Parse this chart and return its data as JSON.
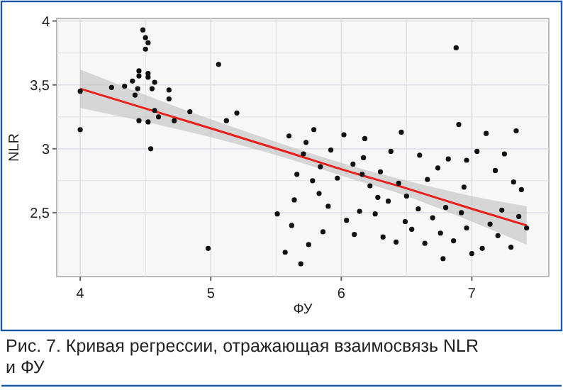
{
  "chart_data": {
    "type": "scatter",
    "xlabel": "ФУ",
    "ylabel": "NLR",
    "annotations": [
      "Рис. 7. Кривая регрессии, отражающая взаимосвязь NLR и ФУ"
    ],
    "xlim": [
      3.82,
      7.59
    ],
    "ylim": [
      2.0,
      4.02
    ],
    "xticks": [
      4,
      5,
      6,
      7
    ],
    "yticks": [
      {
        "value": 2.5,
        "label": "2,5"
      },
      3,
      {
        "value": 3.5,
        "label": "3,5"
      },
      4
    ],
    "grid": true,
    "series": [
      {
        "marker": "circle",
        "color": "#111111",
        "x": [
          4.0,
          4.0,
          4.24,
          4.34,
          4.4,
          4.42,
          4.44,
          4.45,
          4.45,
          4.45,
          4.48,
          4.5,
          4.5,
          4.52,
          4.52,
          4.52,
          4.52,
          4.54,
          4.55,
          4.57,
          4.57,
          4.6,
          4.68,
          4.68,
          4.72,
          4.84,
          4.98,
          5.06,
          5.12,
          5.2,
          5.51,
          5.57,
          5.6,
          5.62,
          5.64,
          5.66,
          5.69,
          5.71,
          5.73,
          5.75,
          5.78,
          5.79,
          5.83,
          5.84,
          5.86,
          5.9,
          5.92,
          5.97,
          6.02,
          6.04,
          6.09,
          6.1,
          6.14,
          6.16,
          6.17,
          6.18,
          6.22,
          6.26,
          6.28,
          6.3,
          6.32,
          6.36,
          6.38,
          6.42,
          6.44,
          6.46,
          6.49,
          6.5,
          6.54,
          6.59,
          6.6,
          6.64,
          6.66,
          6.7,
          6.74,
          6.76,
          6.78,
          6.8,
          6.82,
          6.86,
          6.88,
          6.9,
          6.92,
          6.94,
          6.96,
          6.96,
          7.0,
          7.04,
          7.08,
          7.11,
          7.14,
          7.18,
          7.2,
          7.23,
          7.25,
          7.3,
          7.32,
          7.34,
          7.36,
          7.38,
          7.42
        ],
        "values": [
          3.45,
          3.15,
          3.48,
          3.49,
          3.53,
          3.42,
          3.47,
          3.61,
          3.57,
          3.22,
          3.93,
          3.87,
          3.78,
          3.83,
          3.59,
          3.56,
          3.21,
          3.0,
          3.47,
          3.52,
          3.3,
          3.25,
          3.46,
          3.39,
          3.22,
          3.29,
          2.22,
          3.66,
          3.22,
          3.28,
          2.49,
          2.19,
          3.1,
          2.4,
          2.6,
          2.8,
          2.1,
          2.96,
          3.05,
          2.25,
          2.75,
          3.15,
          2.65,
          2.86,
          2.35,
          2.55,
          2.99,
          2.77,
          3.11,
          2.44,
          2.88,
          2.33,
          2.51,
          2.8,
          2.93,
          3.08,
          2.71,
          2.49,
          2.62,
          2.82,
          2.31,
          2.59,
          2.98,
          2.27,
          2.73,
          3.13,
          2.43,
          2.63,
          2.37,
          2.53,
          2.95,
          2.26,
          2.76,
          2.46,
          2.85,
          2.34,
          2.14,
          2.54,
          2.92,
          2.28,
          3.79,
          3.19,
          2.5,
          2.7,
          2.91,
          2.38,
          2.18,
          2.98,
          2.22,
          3.12,
          2.41,
          2.83,
          2.32,
          2.52,
          2.96,
          2.23,
          2.74,
          3.14,
          2.47,
          2.68,
          2.38
        ]
      },
      {
        "type": "line",
        "color": "#e8201c",
        "x": [
          4,
          5,
          5.6,
          6,
          6.5,
          7,
          7.42
        ],
        "values": [
          3.47,
          3.16,
          2.97,
          2.84,
          2.69,
          2.53,
          2.4
        ],
        "lower": [
          3.32,
          3.09,
          2.92,
          2.79,
          2.63,
          2.43,
          2.25
        ],
        "upper": [
          3.62,
          3.23,
          3.02,
          2.89,
          2.75,
          2.63,
          2.55
        ]
      }
    ]
  }
}
